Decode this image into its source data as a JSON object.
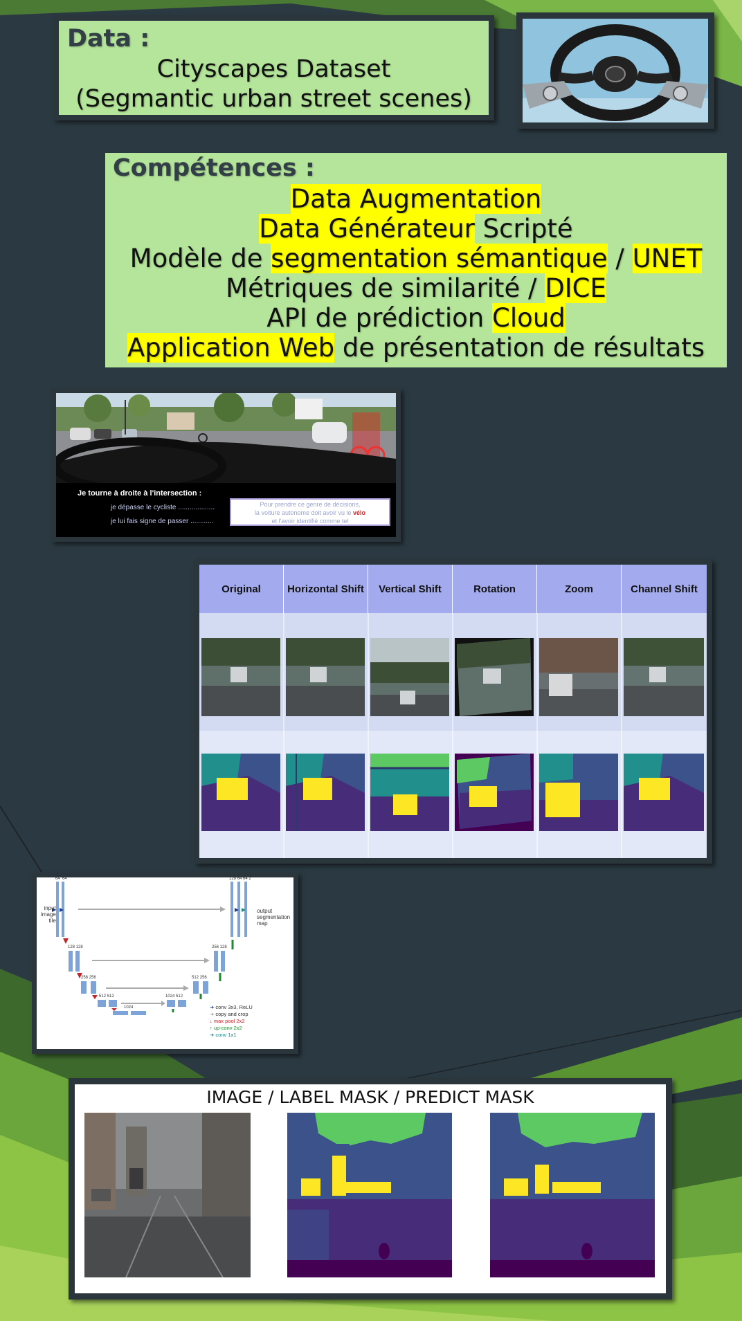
{
  "data_section": {
    "heading": "Data :",
    "line1": "Cityscapes Dataset",
    "line2": "(Segmantic urban street scenes)"
  },
  "competences": {
    "heading": "Compétences :",
    "l1_hl": "Data Augmentation",
    "l2_hl": "Data Générateur",
    "l2_rest": " Scripté",
    "l3_a": "Modèle de ",
    "l3_hl": "segmentation sémantique",
    "l3_b": " / ",
    "l3_hl2": "UNET",
    "l4_a": "Métriques de similarité / ",
    "l4_hl": "DICE",
    "l5_a": "API de prédiction ",
    "l5_hl": "Cloud",
    "l6_hl": "Application Web",
    "l6_rest": " de présentation de résultats"
  },
  "street_image": {
    "caption_title": "Je tourne à droite à l'intersection :",
    "option1": "je dépasse le cycliste ...................",
    "option2": "je lui fais signe de passer ............",
    "note_line1": "Pour prendre ce genre de décisions,",
    "note_line2a": "la voiture autonome doit avoir vu le ",
    "note_line2b": "vélo",
    "note_line3": "et l'avoir identifié comme tel"
  },
  "augmentation_table": {
    "headers": [
      "Original",
      "Horizontal Shift",
      "Vertical Shift",
      "Rotation",
      "Zoom",
      "Channel Shift"
    ]
  },
  "unet_diagram": {
    "input_label": [
      "input",
      "image",
      "tile"
    ],
    "output_label": [
      "output",
      "segmentation",
      "map"
    ],
    "legend": [
      "conv 3x3, ReLU",
      "copy and crop",
      "max pool 2x2",
      "up-conv 2x2",
      "conv 1x1"
    ],
    "legend_colors": [
      "#1a3a8a",
      "#9a9a9a",
      "#c0262c",
      "#1e8a2e",
      "#168a8a"
    ],
    "channels_top_left": [
      "64",
      "64"
    ],
    "channels_top_right": [
      "128",
      "64",
      "64",
      "2"
    ],
    "channels_l2": [
      "128",
      "128"
    ],
    "channels_l2r": [
      "256",
      "128"
    ],
    "channels_l3": [
      "256",
      "256"
    ],
    "channels_l3r": [
      "512",
      "256"
    ],
    "channels_l4": [
      "512",
      "512"
    ],
    "channels_l4r": [
      "1024",
      "512"
    ],
    "channels_bottom": [
      "1024"
    ]
  },
  "mask_panel": {
    "title": "IMAGE / LABEL MASK / PREDICT MASK"
  },
  "colors": {
    "background": "#2b3a42",
    "light_green": "#b4e59a",
    "highlight": "#ffff00",
    "table_header": "#a3aaed",
    "mask_purple": "#440154",
    "mask_blue": "#3b528b",
    "mask_teal": "#21908d",
    "mask_green": "#5dc963",
    "mask_yellow": "#fde725"
  }
}
